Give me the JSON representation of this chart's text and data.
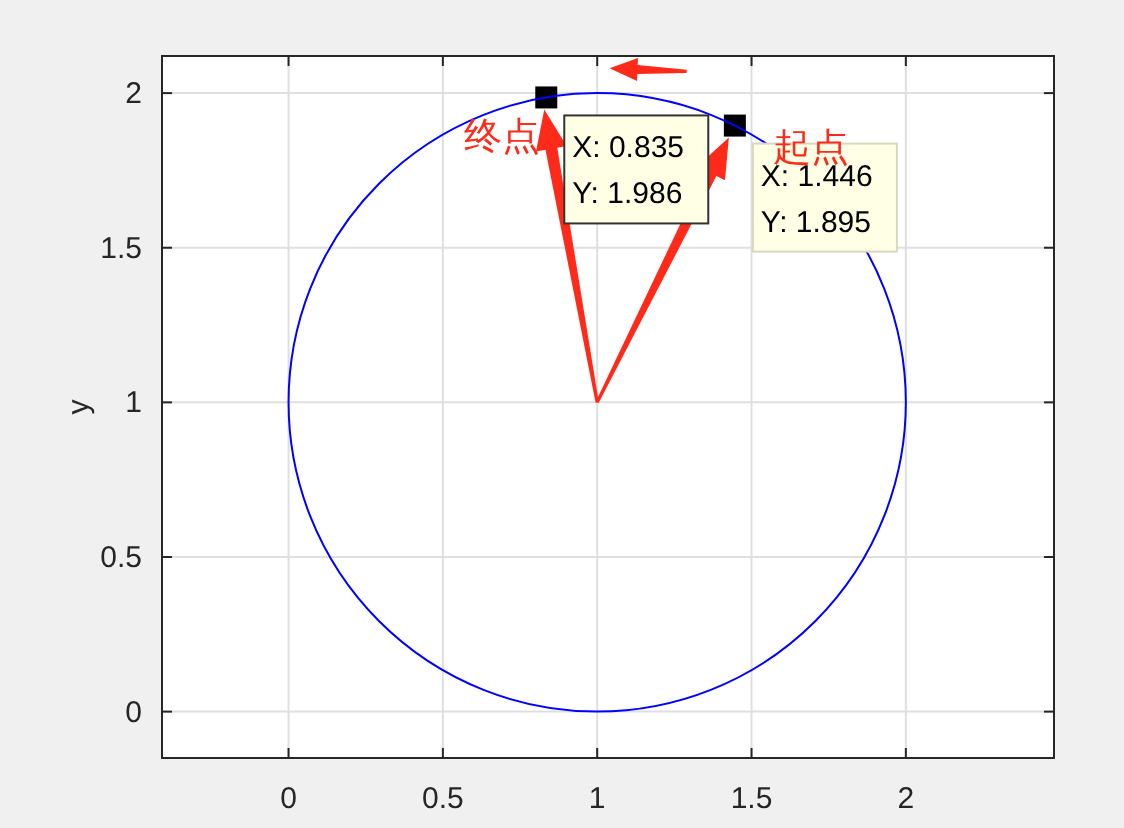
{
  "chart_data": {
    "type": "scatter",
    "ylabel": "y",
    "xlim": [
      -0.41,
      2.48
    ],
    "ylim": [
      -0.15,
      2.12
    ],
    "xticks": [
      0,
      0.5,
      1,
      1.5,
      2
    ],
    "yticks": [
      0,
      0.5,
      1,
      1.5,
      2
    ],
    "grid": true,
    "marker": "square",
    "series": [
      {
        "color": "#000000",
        "x": [
          0.835,
          1.446
        ],
        "values": [
          1.986,
          1.895
        ]
      }
    ],
    "annotations": [
      "X: 0.835\nY: 1.986",
      "X: 1.446\nY: 1.895",
      "终点",
      "起点"
    ]
  }
}
